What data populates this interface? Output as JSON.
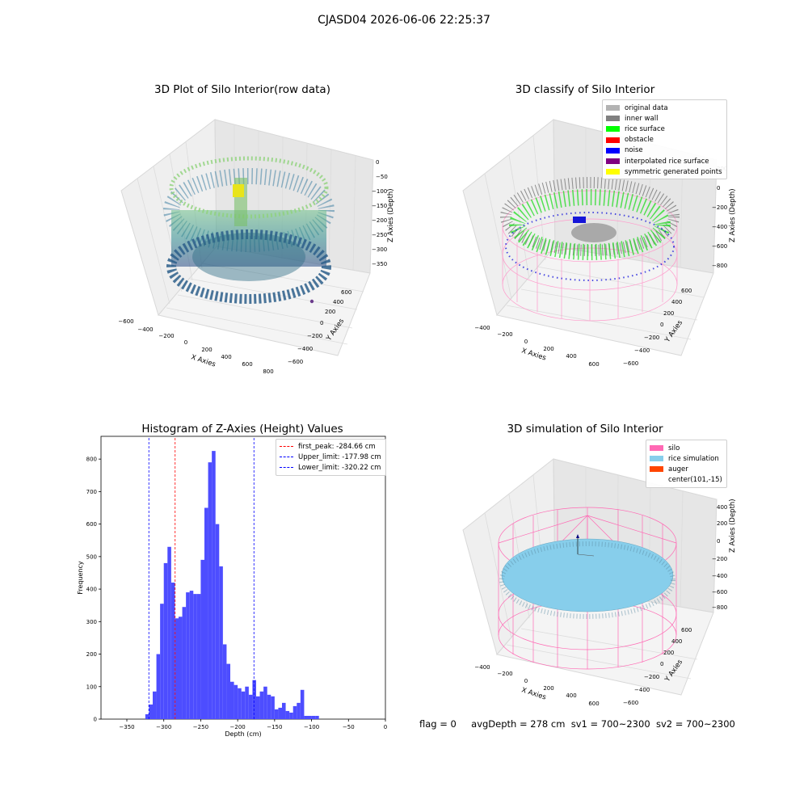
{
  "suptitle": "CJASD04 2026-06-06 22:25:37",
  "panels": {
    "raw": {
      "title": "3D Plot of Silo Interior(row data)",
      "xlabel": "X Axies",
      "ylabel": "Y Axies",
      "zlabel": "Z Axies (Depth)",
      "xticks": [
        "−600",
        "−400",
        "−200",
        "0",
        "200",
        "400",
        "600",
        "800"
      ],
      "yticks": [
        "−600",
        "−400",
        "−200",
        "0",
        "200",
        "400",
        "600"
      ],
      "zticks": [
        "0",
        "−50",
        "−100",
        "−150",
        "−200",
        "−250",
        "−300",
        "−350"
      ]
    },
    "classify": {
      "title": "3D classify of Silo Interior",
      "xlabel": "X Axies",
      "ylabel": "Y Axies",
      "zlabel": "Z Axies (Depth)",
      "xticks": [
        "−400",
        "−200",
        "0",
        "200",
        "400",
        "600"
      ],
      "yticks": [
        "−600",
        "−400",
        "−200",
        "0",
        "200",
        "400",
        "600"
      ],
      "zticks": [
        "200",
        "0",
        "−200",
        "−400",
        "−600",
        "−800"
      ],
      "legend": [
        {
          "label": "original data",
          "color": "#b3b3b3"
        },
        {
          "label": "inner wall",
          "color": "#808080"
        },
        {
          "label": "rice surface",
          "color": "#00ff00"
        },
        {
          "label": "obstacle",
          "color": "#ff0000"
        },
        {
          "label": "noise",
          "color": "#0000ff"
        },
        {
          "label": "interpolated rice surface",
          "color": "#800080"
        },
        {
          "label": "symmetric generated points",
          "color": "#ffff00"
        }
      ]
    },
    "simulation": {
      "title": "3D simulation of Silo Interior",
      "xlabel": "X Axies",
      "ylabel": "Y Axies",
      "zlabel": "Z Axies (Depth)",
      "xticks": [
        "−400",
        "−200",
        "0",
        "200",
        "400",
        "600"
      ],
      "yticks": [
        "−600",
        "−400",
        "−200",
        "0",
        "200",
        "400",
        "600"
      ],
      "zticks": [
        "400",
        "200",
        "0",
        "−200",
        "−400",
        "−600",
        "−800"
      ],
      "legend": [
        {
          "label": "silo",
          "color": "#ff69b4"
        },
        {
          "label": "rice simulation",
          "color": "#87ceeb"
        },
        {
          "label": "auger",
          "color": "#ff4500"
        },
        {
          "label": "center(101,-15)",
          "color": ""
        }
      ]
    }
  },
  "chart_data": {
    "type": "bar",
    "title": "Histogram of Z-Axies (Height) Values",
    "xlabel": "Depth (cm)",
    "ylabel": "Frequency",
    "xlim": [
      -385,
      0
    ],
    "ylim": [
      0,
      870
    ],
    "bin_width": 5,
    "xticks": [
      -350,
      -300,
      -250,
      -200,
      -150,
      -100,
      -50,
      0
    ],
    "xtick_labels": [
      "−350",
      "−300",
      "−250",
      "−200",
      "−150",
      "−100",
      "−50",
      "0"
    ],
    "yticks": [
      0,
      100,
      200,
      300,
      400,
      500,
      600,
      700,
      800
    ],
    "bins_start": [
      -325,
      -320,
      -315,
      -310,
      -305,
      -300,
      -295,
      -290,
      -285,
      -280,
      -275,
      -270,
      -265,
      -260,
      -255,
      -250,
      -245,
      -240,
      -235,
      -230,
      -225,
      -220,
      -215,
      -210,
      -205,
      -200,
      -195,
      -190,
      -185,
      -180,
      -175,
      -170,
      -165,
      -160,
      -155,
      -150,
      -145,
      -140,
      -135,
      -130,
      -125,
      -120,
      -115,
      -110,
      -105,
      -100,
      -95,
      -90,
      -85,
      -80,
      -75,
      -70,
      -65,
      -60,
      -55,
      -50,
      -45,
      -40,
      -35,
      -30,
      -25,
      -20
    ],
    "values": [
      15,
      45,
      85,
      200,
      355,
      480,
      530,
      420,
      310,
      315,
      345,
      390,
      395,
      385,
      385,
      490,
      650,
      790,
      825,
      600,
      470,
      230,
      170,
      115,
      105,
      95,
      85,
      100,
      75,
      120,
      70,
      85,
      100,
      75,
      70,
      30,
      35,
      50,
      25,
      20,
      40,
      50,
      90,
      10,
      10,
      10,
      10,
      0,
      0,
      0,
      0,
      0,
      0,
      0,
      0,
      0,
      0,
      0,
      0,
      0,
      0,
      0
    ],
    "color": "#4d4dff",
    "vlines": [
      {
        "x": -284.66,
        "label": "first_peak: -284.66 cm",
        "color": "#ff0000"
      },
      {
        "x": -177.98,
        "label": "Upper_limit: -177.98 cm",
        "color": "#0000ff"
      },
      {
        "x": -320.22,
        "label": "Lower_limit: -320.22 cm",
        "color": "#0000ff"
      }
    ]
  },
  "status": {
    "flag": "flag = 0",
    "avg": "avgDepth = 278 cm",
    "sv1": "sv1 = 700~2300",
    "sv2": "sv2 = 700~2300"
  }
}
